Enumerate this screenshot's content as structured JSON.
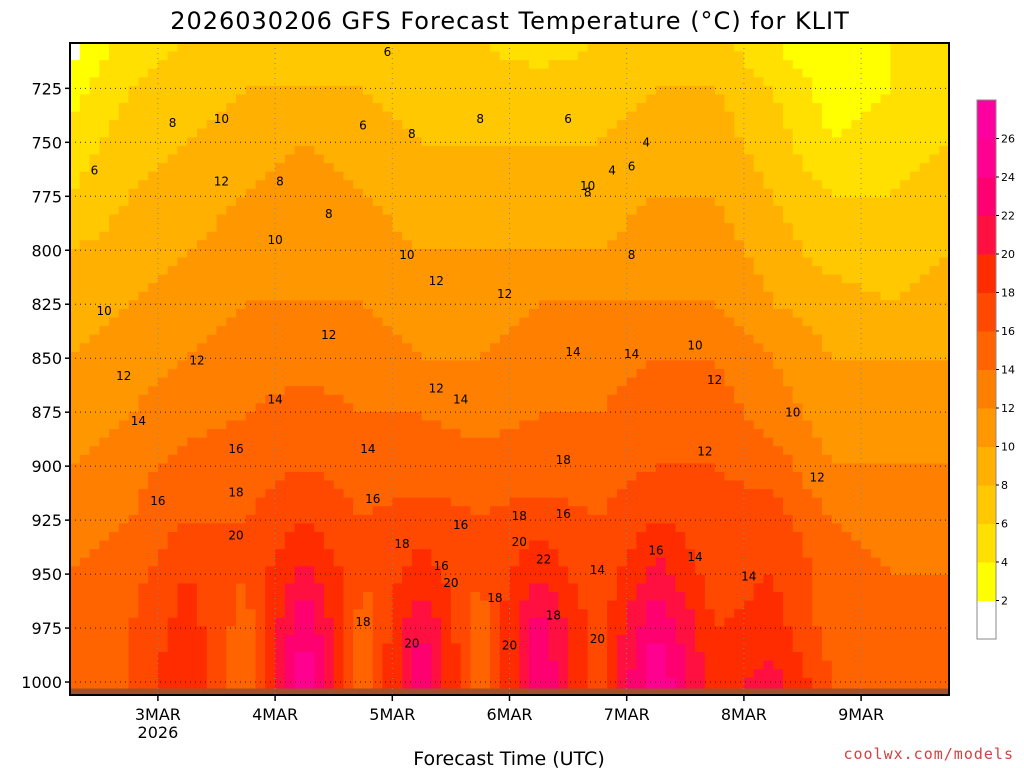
{
  "chart_data": {
    "type": "heatmap",
    "title": "2026030206 GFS Forecast Temperature (°C) for KLIT",
    "xlabel": "Forecast Time (UTC)",
    "ylabel": "",
    "credit": "coolwx.com/models",
    "x_ticks": [
      {
        "label": "3MAR",
        "sublabel": "2026",
        "hour": 18
      },
      {
        "label": "4MAR",
        "sublabel": "",
        "hour": 42
      },
      {
        "label": "5MAR",
        "sublabel": "",
        "hour": 66
      },
      {
        "label": "6MAR",
        "sublabel": "",
        "hour": 90
      },
      {
        "label": "7MAR",
        "sublabel": "",
        "hour": 114
      },
      {
        "label": "8MAR",
        "sublabel": "",
        "hour": 138
      },
      {
        "label": "9MAR",
        "sublabel": "",
        "hour": 162
      }
    ],
    "xlim": [
      0,
      180
    ],
    "y_ticks": [
      725,
      750,
      775,
      800,
      825,
      850,
      875,
      900,
      925,
      950,
      975,
      1000
    ],
    "ylim": [
      1006,
      704
    ],
    "colorbar": {
      "levels": [
        2,
        4,
        6,
        8,
        10,
        12,
        14,
        16,
        18,
        20,
        22,
        24,
        26
      ],
      "colors": [
        "#ffffff",
        "#ffff00",
        "#ffe000",
        "#ffc800",
        "#ffb000",
        "#ff9800",
        "#ff8000",
        "#ff6400",
        "#ff4800",
        "#ff2c00",
        "#ff1040",
        "#ff0070",
        "#ff0090",
        "#ff00a0"
      ],
      "labels": [
        "2",
        "4",
        "6",
        "8",
        "10",
        "12",
        "14",
        "16",
        "18",
        "20",
        "22",
        "24",
        "26"
      ]
    },
    "ground": {
      "color": "#a0522d",
      "surface_pressure": 1003
    },
    "temperature_field": {
      "hours": [
        0,
        12,
        24,
        36,
        48,
        60,
        72,
        84,
        96,
        108,
        120,
        132,
        144,
        156,
        168,
        180
      ],
      "pressures": [
        704,
        725,
        750,
        775,
        800,
        825,
        850,
        875,
        900,
        925,
        950,
        975,
        1000
      ],
      "values": [
        [
          1,
          5,
          6,
          6,
          7,
          7,
          6,
          6,
          5,
          6,
          7,
          7,
          4,
          2,
          4,
          5
        ],
        [
          3,
          6,
          7,
          8,
          8,
          8,
          7,
          7,
          7,
          7,
          8,
          8,
          6,
          3,
          4,
          5
        ],
        [
          5,
          7,
          8,
          9,
          10,
          9,
          8,
          8,
          8,
          8,
          9,
          9,
          7,
          4,
          5,
          6
        ],
        [
          6,
          8,
          9,
          10,
          11,
          10,
          9,
          9,
          9,
          9,
          10,
          10,
          8,
          6,
          6,
          7
        ],
        [
          8,
          9,
          10,
          11,
          12,
          11,
          10,
          10,
          10,
          10,
          11,
          11,
          9,
          7,
          7,
          8
        ],
        [
          9,
          10,
          11,
          12,
          12,
          12,
          11,
          11,
          12,
          12,
          12,
          12,
          10,
          9,
          8,
          9
        ],
        [
          10,
          11,
          12,
          13,
          13,
          13,
          12,
          12,
          13,
          13,
          14,
          14,
          12,
          10,
          10,
          10
        ],
        [
          11,
          12,
          13,
          14,
          15,
          14,
          14,
          13,
          14,
          14,
          15,
          15,
          13,
          11,
          11,
          11
        ],
        [
          12,
          13,
          15,
          15,
          16,
          15,
          15,
          15,
          15,
          15,
          16,
          16,
          15,
          12,
          12,
          12
        ],
        [
          13,
          14,
          16,
          16,
          18,
          16,
          17,
          16,
          17,
          16,
          18,
          17,
          17,
          14,
          13,
          13
        ],
        [
          14,
          15,
          18,
          16,
          21,
          16,
          19,
          16,
          20,
          16,
          21,
          17,
          18,
          15,
          14,
          14
        ],
        [
          14,
          16,
          19,
          15,
          24,
          15,
          22,
          15,
          23,
          17,
          24,
          18,
          19,
          15,
          15,
          15
        ],
        [
          15,
          16,
          20,
          14,
          26,
          14,
          24,
          14,
          24,
          17,
          26,
          19,
          21,
          16,
          15,
          16
        ]
      ]
    },
    "contour_labels": [
      {
        "text": "6",
        "hour": 5,
        "p": 765
      },
      {
        "text": "8",
        "hour": 21,
        "p": 743
      },
      {
        "text": "10",
        "hour": 31,
        "p": 741
      },
      {
        "text": "12",
        "hour": 31,
        "p": 770
      },
      {
        "text": "8",
        "hour": 43,
        "p": 770
      },
      {
        "text": "10",
        "hour": 42,
        "p": 797
      },
      {
        "text": "8",
        "hour": 53,
        "p": 785
      },
      {
        "text": "6",
        "hour": 60,
        "p": 744
      },
      {
        "text": "6",
        "hour": 65,
        "p": 710
      },
      {
        "text": "8",
        "hour": 70,
        "p": 748
      },
      {
        "text": "10",
        "hour": 69,
        "p": 804
      },
      {
        "text": "12",
        "hour": 75,
        "p": 816
      },
      {
        "text": "8",
        "hour": 84,
        "p": 741
      },
      {
        "text": "12",
        "hour": 89,
        "p": 822
      },
      {
        "text": "10",
        "hour": 106,
        "p": 772
      },
      {
        "text": "6",
        "hour": 102,
        "p": 741
      },
      {
        "text": "8",
        "hour": 106,
        "p": 775
      },
      {
        "text": "4",
        "hour": 111,
        "p": 765
      },
      {
        "text": "6",
        "hour": 115,
        "p": 763
      },
      {
        "text": "4",
        "hour": 118,
        "p": 752
      },
      {
        "text": "8",
        "hour": 115,
        "p": 804
      },
      {
        "text": "10",
        "hour": 7,
        "p": 830
      },
      {
        "text": "12",
        "hour": 11,
        "p": 860
      },
      {
        "text": "12",
        "hour": 26,
        "p": 853
      },
      {
        "text": "12",
        "hour": 53,
        "p": 841
      },
      {
        "text": "14",
        "hour": 42,
        "p": 871
      },
      {
        "text": "14",
        "hour": 80,
        "p": 871
      },
      {
        "text": "12",
        "hour": 75,
        "p": 866
      },
      {
        "text": "14",
        "hour": 103,
        "p": 849
      },
      {
        "text": "14",
        "hour": 115,
        "p": 850
      },
      {
        "text": "10",
        "hour": 128,
        "p": 846
      },
      {
        "text": "12",
        "hour": 132,
        "p": 862
      },
      {
        "text": "10",
        "hour": 148,
        "p": 877
      },
      {
        "text": "14",
        "hour": 14,
        "p": 881
      },
      {
        "text": "16",
        "hour": 18,
        "p": 918
      },
      {
        "text": "16",
        "hour": 34,
        "p": 894
      },
      {
        "text": "18",
        "hour": 34,
        "p": 914
      },
      {
        "text": "20",
        "hour": 34,
        "p": 934
      },
      {
        "text": "14",
        "hour": 61,
        "p": 894
      },
      {
        "text": "16",
        "hour": 62,
        "p": 917
      },
      {
        "text": "16",
        "hour": 80,
        "p": 929
      },
      {
        "text": "18",
        "hour": 68,
        "p": 938
      },
      {
        "text": "20",
        "hour": 78,
        "p": 956
      },
      {
        "text": "16",
        "hour": 76,
        "p": 948
      },
      {
        "text": "14",
        "hour": 108,
        "p": 950
      },
      {
        "text": "16",
        "hour": 101,
        "p": 924
      },
      {
        "text": "18",
        "hour": 101,
        "p": 899
      },
      {
        "text": "18",
        "hour": 92,
        "p": 925
      },
      {
        "text": "20",
        "hour": 92,
        "p": 937
      },
      {
        "text": "22",
        "hour": 97,
        "p": 945
      },
      {
        "text": "12",
        "hour": 130,
        "p": 895
      },
      {
        "text": "12",
        "hour": 153,
        "p": 907
      },
      {
        "text": "14",
        "hour": 128,
        "p": 944
      },
      {
        "text": "14",
        "hour": 139,
        "p": 953
      },
      {
        "text": "16",
        "hour": 120,
        "p": 941
      },
      {
        "text": "18",
        "hour": 87,
        "p": 963
      },
      {
        "text": "18",
        "hour": 60,
        "p": 974
      },
      {
        "text": "20",
        "hour": 90,
        "p": 985
      },
      {
        "text": "20",
        "hour": 70,
        "p": 984
      },
      {
        "text": "18",
        "hour": 99,
        "p": 971
      },
      {
        "text": "20",
        "hour": 108,
        "p": 982
      }
    ]
  }
}
